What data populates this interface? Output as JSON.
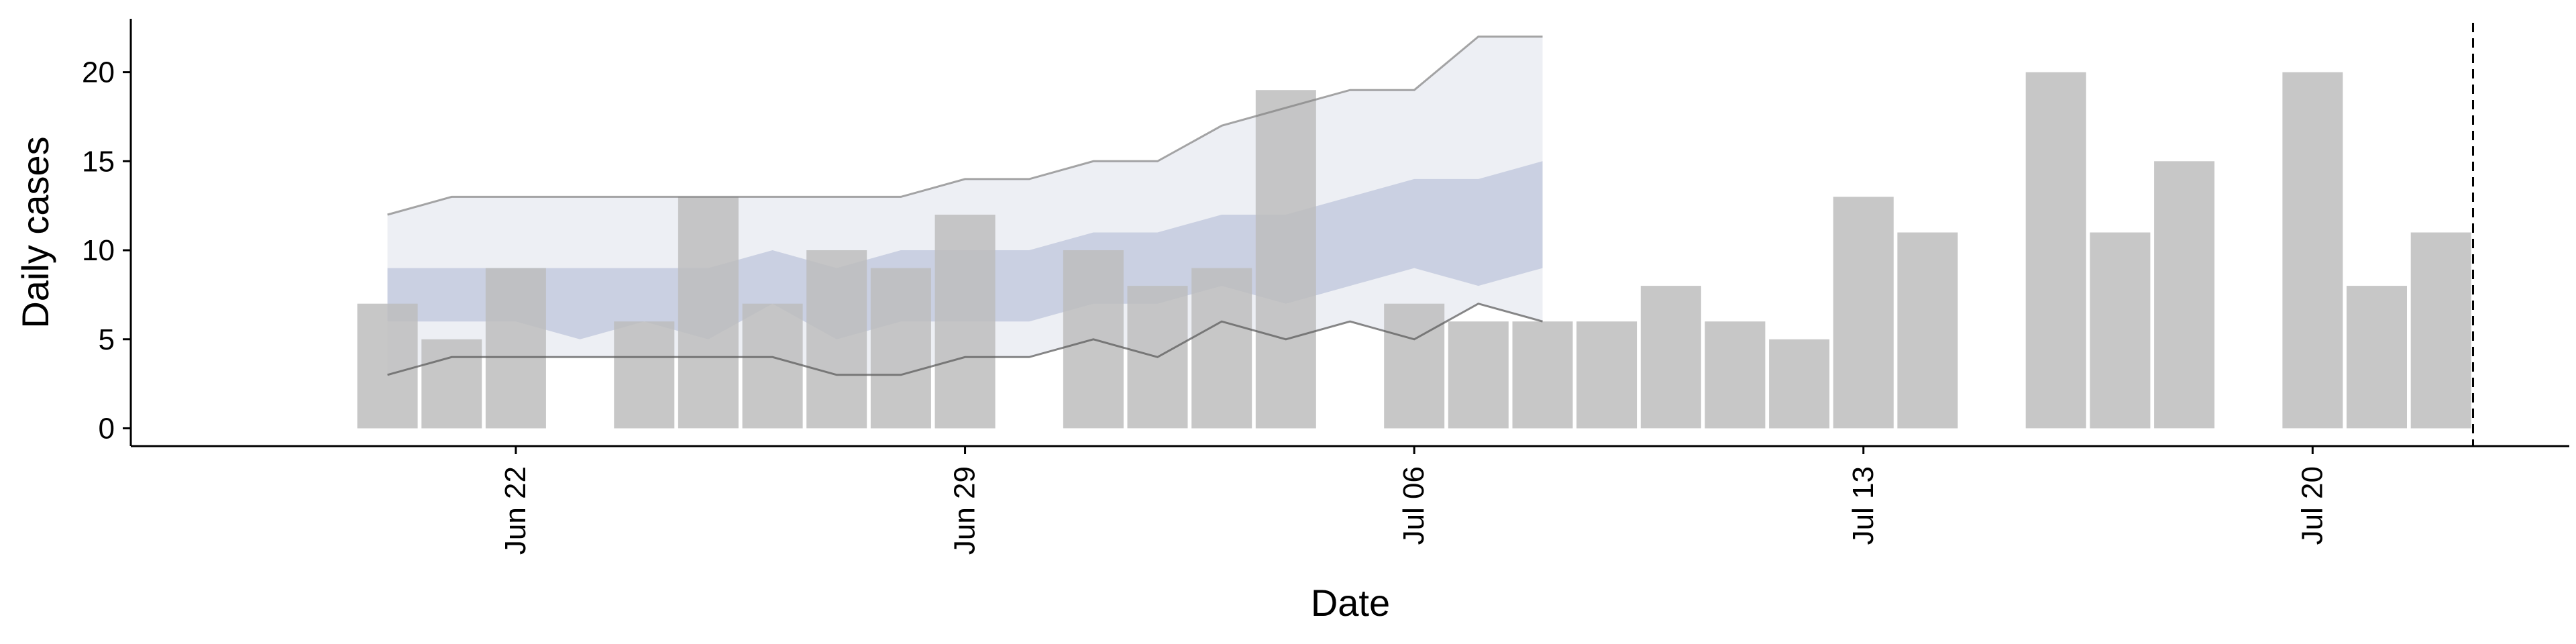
{
  "chart_data": {
    "type": "bar",
    "title": "",
    "xlabel": "Date",
    "ylabel": "Daily cases",
    "ylim": [
      -1,
      23
    ],
    "xlim": [
      "2020-06-16",
      "2020-07-24"
    ],
    "yticks": [
      0,
      5,
      10,
      15,
      20
    ],
    "xticks": [
      {
        "date": "2020-06-22",
        "label": "Jun 22"
      },
      {
        "date": "2020-06-29",
        "label": "Jun 29"
      },
      {
        "date": "2020-07-06",
        "label": "Jul 06"
      },
      {
        "date": "2020-07-13",
        "label": "Jul 13"
      },
      {
        "date": "2020-07-20",
        "label": "Jul 20"
      }
    ],
    "grid": false,
    "legend": "none",
    "bars": {
      "dates": [
        "2020-06-20",
        "2020-06-21",
        "2020-06-22",
        "2020-06-24",
        "2020-06-25",
        "2020-06-26",
        "2020-06-27",
        "2020-06-28",
        "2020-06-29",
        "2020-07-01",
        "2020-07-02",
        "2020-07-03",
        "2020-07-04",
        "2020-07-06",
        "2020-07-07",
        "2020-07-08",
        "2020-07-09",
        "2020-07-10",
        "2020-07-11",
        "2020-07-12",
        "2020-07-13",
        "2020-07-14",
        "2020-07-16",
        "2020-07-17",
        "2020-07-18",
        "2020-07-20",
        "2020-07-21",
        "2020-07-22"
      ],
      "values": [
        7,
        5,
        9,
        6,
        13,
        7,
        10,
        9,
        12,
        10,
        8,
        9,
        19,
        7,
        6,
        6,
        6,
        8,
        6,
        5,
        13,
        11,
        20,
        11,
        15,
        20,
        8,
        11
      ],
      "color": "#bdbdbd"
    },
    "forecast": {
      "dates": [
        "2020-06-20",
        "2020-06-21",
        "2020-06-22",
        "2020-06-23",
        "2020-06-24",
        "2020-06-25",
        "2020-06-26",
        "2020-06-27",
        "2020-06-28",
        "2020-06-29",
        "2020-06-30",
        "2020-07-01",
        "2020-07-02",
        "2020-07-03",
        "2020-07-04",
        "2020-07-05",
        "2020-07-06",
        "2020-07-07",
        "2020-07-08"
      ],
      "outer_lower": [
        3,
        4,
        4,
        4,
        4,
        4,
        4,
        3,
        3,
        4,
        4,
        5,
        4,
        6,
        5,
        6,
        5,
        7,
        6
      ],
      "outer_upper": [
        12,
        13,
        13,
        13,
        13,
        13,
        13,
        13,
        13,
        14,
        14,
        15,
        15,
        17,
        18,
        19,
        19,
        22,
        22
      ],
      "inner_lower": [
        6,
        6,
        6,
        5,
        6,
        5,
        7,
        5,
        6,
        6,
        6,
        7,
        7,
        8,
        7,
        8,
        9,
        8,
        9
      ],
      "inner_upper": [
        9,
        9,
        9,
        9,
        9,
        9,
        10,
        9,
        10,
        10,
        10,
        11,
        11,
        12,
        12,
        13,
        14,
        14,
        15
      ],
      "outer_color": "#dcdfea",
      "inner_color": "#a8b2cf"
    },
    "vline_date": "2020-07-22.5"
  }
}
